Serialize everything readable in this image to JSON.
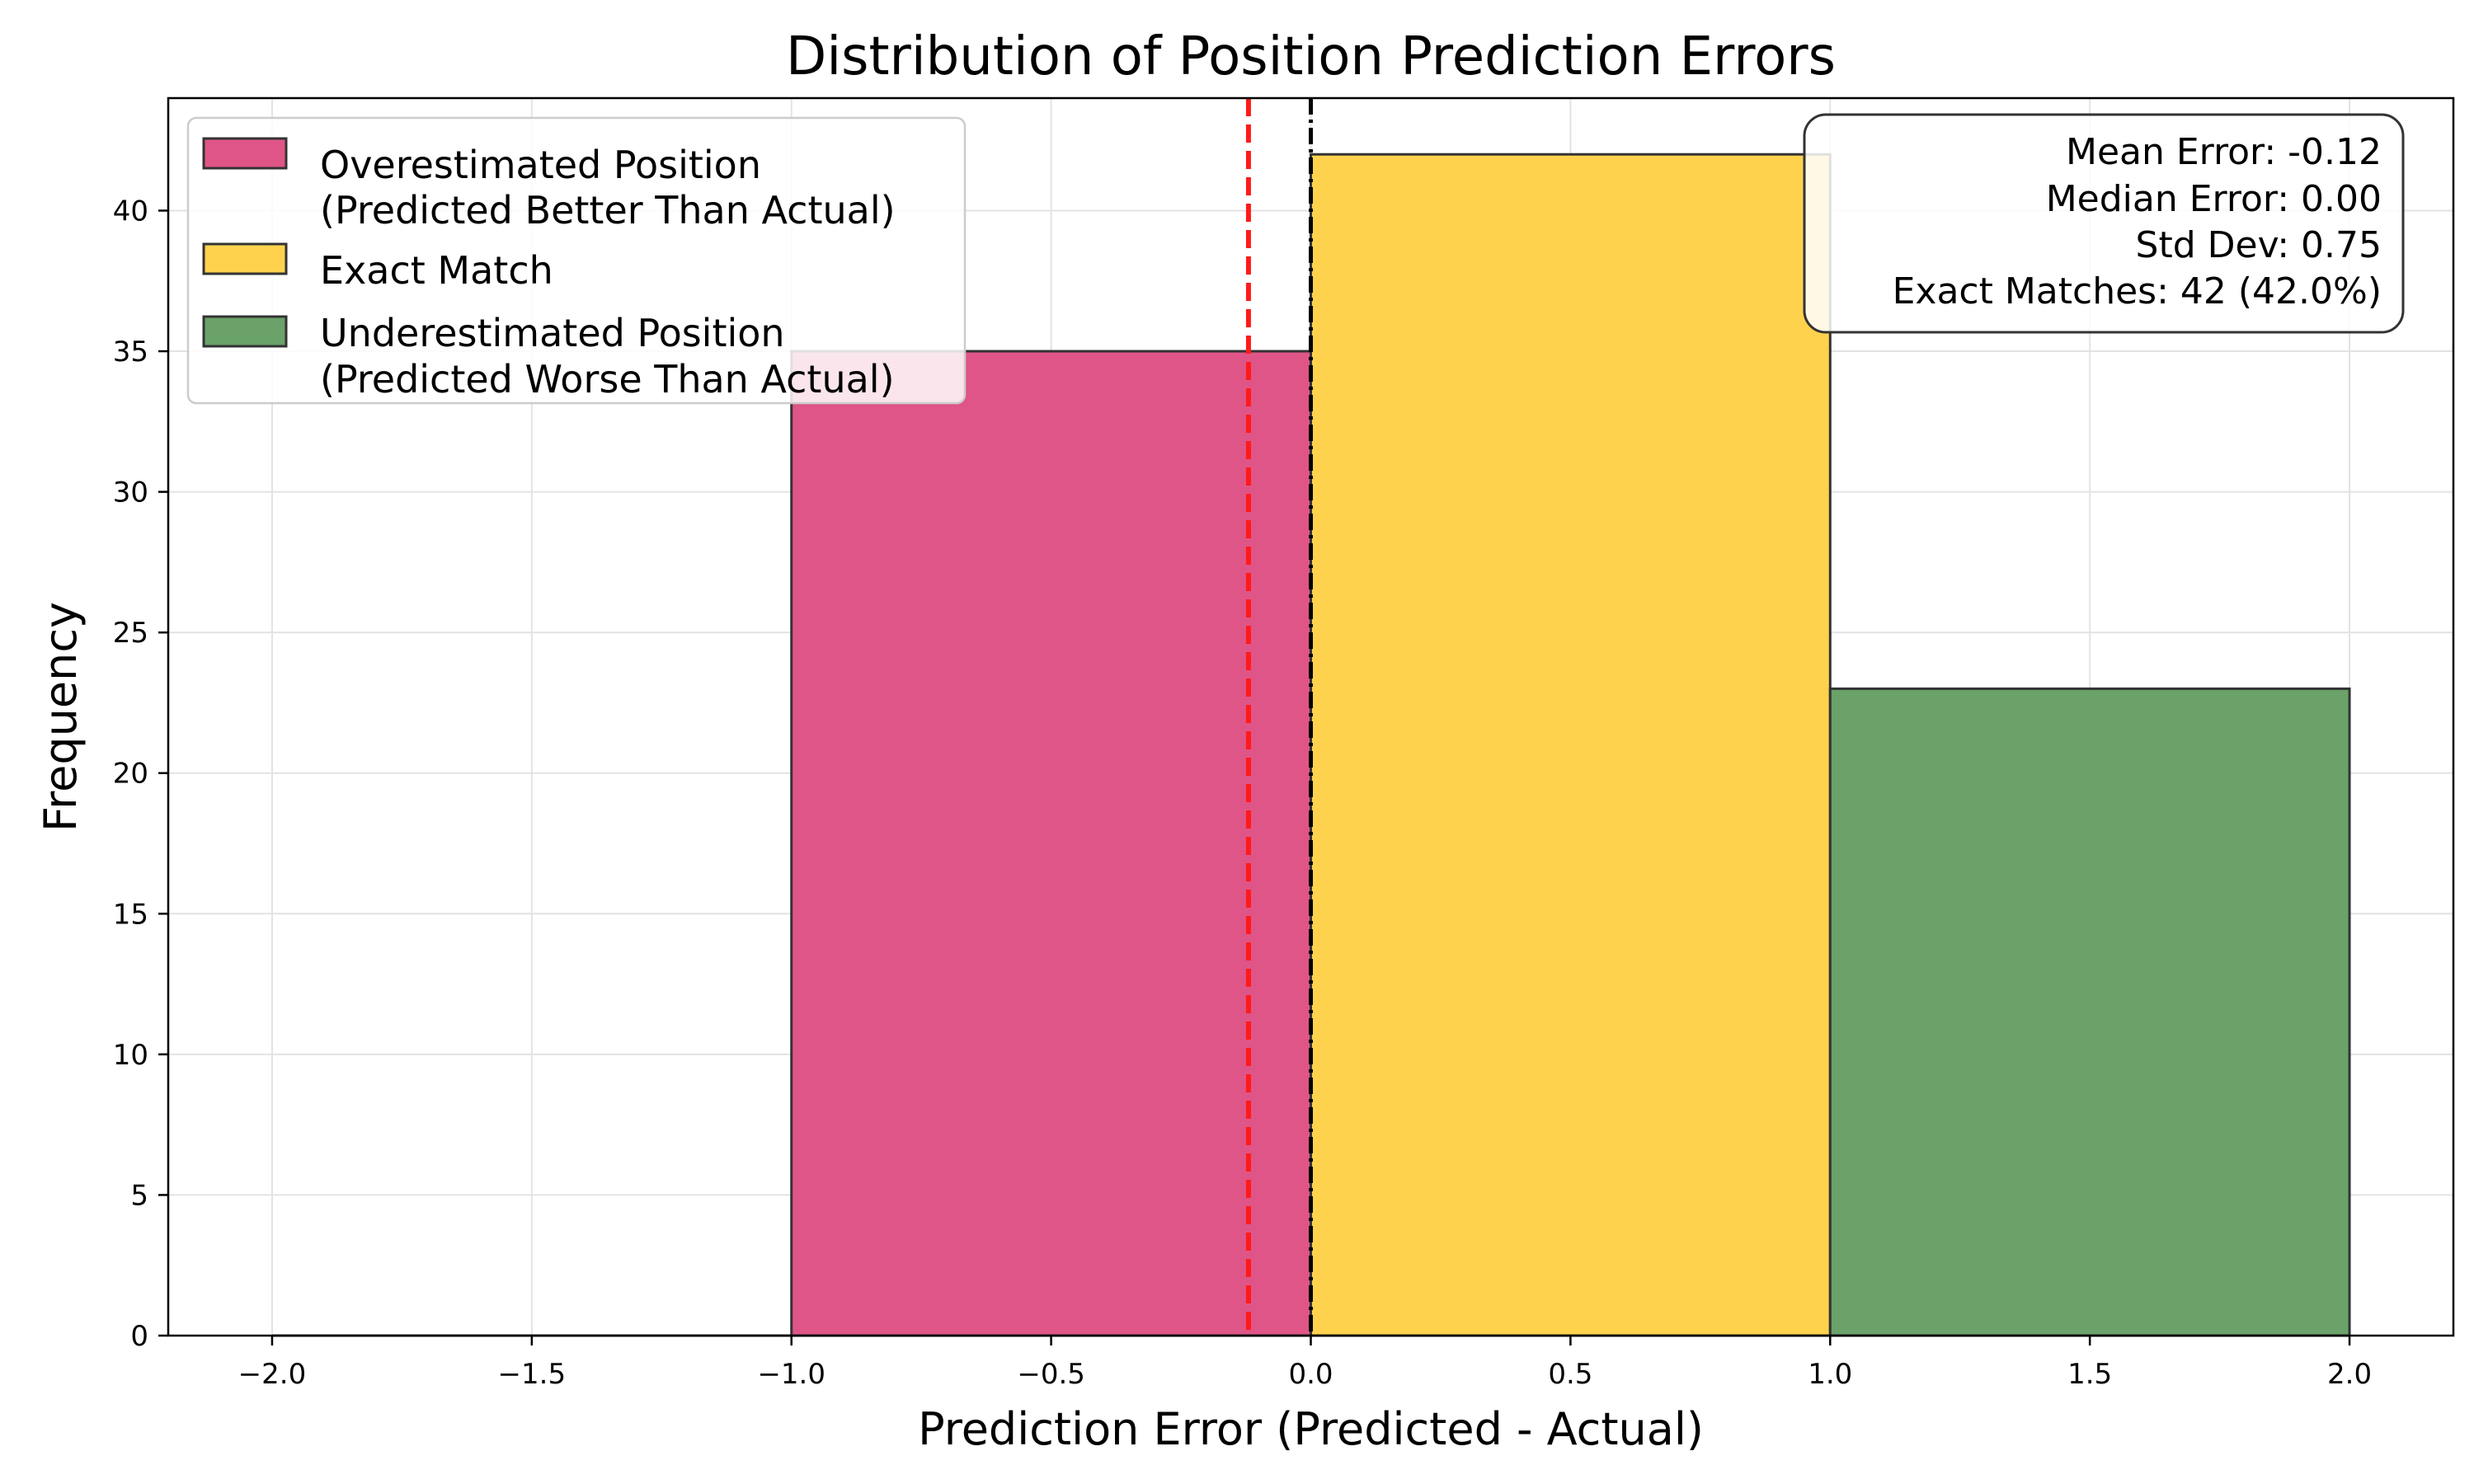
{
  "chart_data": {
    "type": "bar",
    "title": "Distribution of Position Prediction Errors",
    "xlabel": "Prediction Error (Predicted - Actual)",
    "ylabel": "Frequency",
    "xlim": [
      -2.2,
      2.2
    ],
    "ylim": [
      0,
      44
    ],
    "x_ticks": [
      -2.0,
      -1.5,
      -1.0,
      -0.5,
      0.0,
      0.5,
      1.0,
      1.5,
      2.0
    ],
    "x_tick_labels": [
      "−2.0",
      "−1.5",
      "−1.0",
      "−0.5",
      "0.0",
      "0.5",
      "1.0",
      "1.5",
      "2.0"
    ],
    "y_ticks": [
      0,
      5,
      10,
      15,
      20,
      25,
      30,
      35,
      40
    ],
    "y_tick_labels": [
      "0",
      "5",
      "10",
      "15",
      "20",
      "25",
      "30",
      "35",
      "40"
    ],
    "grid": true,
    "bins": [
      {
        "x0": -2.0,
        "x1": -1.0,
        "value": 0,
        "series": "over"
      },
      {
        "x0": -1.0,
        "x1": 0.0,
        "value": 35,
        "series": "over"
      },
      {
        "x0": 0.0,
        "x1": 1.0,
        "value": 42,
        "series": "exact"
      },
      {
        "x0": 1.0,
        "x1": 2.0,
        "value": 23,
        "series": "under"
      }
    ],
    "series": [
      {
        "key": "over",
        "name": "Overestimated Position\n(Predicted Better Than Actual)",
        "color": "#e05587"
      },
      {
        "key": "exact",
        "name": "Exact Match",
        "color": "#ffd24d"
      },
      {
        "key": "under",
        "name": "Underestimated Position\n(Predicted Worse Than Actual)",
        "color": "#6aa26a"
      }
    ],
    "reference_lines": [
      {
        "x": -0.12,
        "style": "dashed",
        "color": "#ff1a1a"
      },
      {
        "x": 0.0,
        "style": "dash-dot",
        "color": "#000000"
      }
    ],
    "legend_position": "upper-left",
    "stats_box": {
      "position": "upper-right",
      "lines": [
        "Mean Error: -0.12",
        "Median Error: 0.00",
        "Std Dev: 0.75",
        "Exact Matches: 42 (42.0%)"
      ]
    }
  }
}
